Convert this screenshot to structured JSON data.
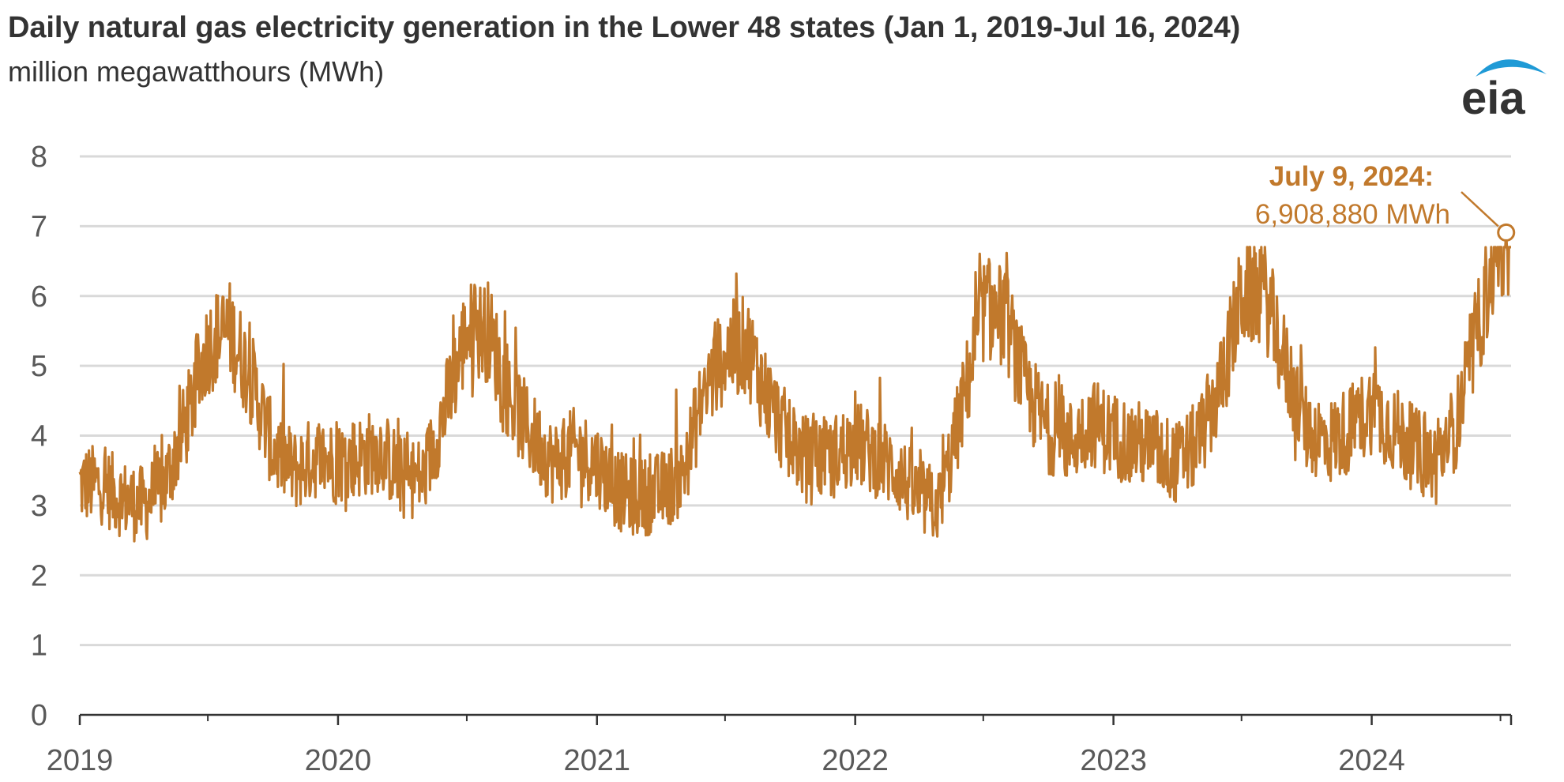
{
  "title": "Daily natural gas electricity generation in the Lower 48 states (Jan 1, 2019-Jul 16, 2024)",
  "subtitle": "million megawatthours (MWh)",
  "logo": {
    "text": "eia",
    "swoosh_color": "#1f9ad6"
  },
  "annotation": {
    "title": "July 9, 2024:",
    "value": "6,908,880 MWh",
    "date": "2024-07-09",
    "y": 6.90888
  },
  "colors": {
    "series": "#c1792c",
    "grid": "#d9d9d9",
    "axis": "#333333",
    "text": "#595959"
  },
  "chart_data": {
    "type": "line",
    "title": "Daily natural gas electricity generation in the Lower 48 states (Jan 1, 2019-Jul 16, 2024)",
    "ylabel": "million megawatthours (MWh)",
    "xlabel": "",
    "ylim": [
      0,
      8
    ],
    "yticks": [
      "0",
      "1",
      "2",
      "3",
      "4",
      "5",
      "6",
      "7",
      "8"
    ],
    "xlim": [
      "2019-01-01",
      "2024-07-16"
    ],
    "xtick_labels": [
      "2019",
      "2020",
      "2021",
      "2022",
      "2023",
      "2024"
    ],
    "grid": true,
    "legend": "none",
    "series": [
      {
        "color": "#c1792c",
        "x": [
          "2019-01-01",
          "2019-02-01",
          "2019-03-01",
          "2019-04-01",
          "2019-05-01",
          "2019-06-01",
          "2019-07-01",
          "2019-08-01",
          "2019-09-01",
          "2019-10-01",
          "2019-11-01",
          "2019-12-01",
          "2020-01-01",
          "2020-02-01",
          "2020-03-01",
          "2020-04-01",
          "2020-05-01",
          "2020-06-01",
          "2020-07-01",
          "2020-08-01",
          "2020-09-01",
          "2020-10-01",
          "2020-11-01",
          "2020-12-01",
          "2021-01-01",
          "2021-02-01",
          "2021-03-01",
          "2021-04-01",
          "2021-05-01",
          "2021-06-01",
          "2021-07-01",
          "2021-08-01",
          "2021-09-01",
          "2021-10-01",
          "2021-11-01",
          "2021-12-01",
          "2022-01-01",
          "2022-02-01",
          "2022-03-01",
          "2022-04-01",
          "2022-05-01",
          "2022-06-01",
          "2022-07-01",
          "2022-08-01",
          "2022-09-01",
          "2022-10-01",
          "2022-11-01",
          "2022-12-01",
          "2023-01-01",
          "2023-02-01",
          "2023-03-01",
          "2023-04-01",
          "2023-05-01",
          "2023-06-01",
          "2023-07-01",
          "2023-08-01",
          "2023-09-01",
          "2023-10-01",
          "2023-11-01",
          "2023-12-01",
          "2024-01-01",
          "2024-02-01",
          "2024-03-01",
          "2024-04-01",
          "2024-05-01",
          "2024-06-01",
          "2024-07-01",
          "2024-07-16"
        ],
        "y": [
          3.3,
          3.3,
          3.1,
          3.0,
          3.3,
          4.2,
          5.3,
          5.5,
          4.8,
          3.8,
          3.5,
          3.7,
          3.6,
          3.7,
          3.8,
          3.4,
          3.4,
          4.4,
          5.5,
          5.5,
          4.5,
          4.0,
          3.6,
          3.8,
          3.6,
          3.2,
          3.1,
          3.2,
          3.4,
          4.6,
          5.2,
          5.3,
          4.5,
          3.9,
          3.6,
          3.7,
          3.9,
          3.7,
          3.5,
          3.1,
          3.0,
          4.4,
          5.8,
          5.7,
          4.6,
          4.1,
          3.9,
          4.2,
          4.0,
          3.9,
          3.8,
          3.6,
          3.9,
          4.7,
          6.0,
          6.1,
          5.0,
          4.1,
          3.9,
          4.1,
          4.4,
          4.1,
          3.8,
          3.6,
          4.2,
          5.6,
          6.9,
          6.3
        ]
      }
    ]
  }
}
